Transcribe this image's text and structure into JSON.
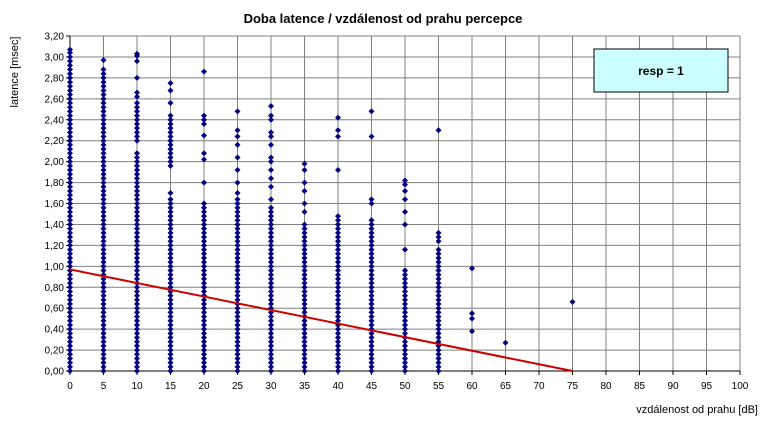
{
  "chart_data": {
    "type": "scatter",
    "title": "Doba latence / vzdálenost od prahu percepce",
    "xlabel": "vzdálenost od prahu [dB]",
    "ylabel": "latence [msec]",
    "xlim": [
      0,
      100
    ],
    "ylim": [
      0,
      3.2
    ],
    "x_ticks": [
      "0",
      "5",
      "10",
      "15",
      "20",
      "25",
      "30",
      "35",
      "40",
      "45",
      "50",
      "55",
      "60",
      "65",
      "70",
      "75",
      "80",
      "85",
      "90",
      "95",
      "100"
    ],
    "y_ticks": [
      "0,00",
      "0,20",
      "0,40",
      "0,60",
      "0,80",
      "1,00",
      "1,20",
      "1,40",
      "1,60",
      "1,80",
      "2,00",
      "2,20",
      "2,40",
      "2,60",
      "2,80",
      "3,00",
      "3,20"
    ],
    "grid": true,
    "legend": {
      "text": "resp = 1",
      "placement": "top-right"
    },
    "colors": {
      "points": "#000080",
      "trendline": "#cc0000",
      "legend_fill": "#ccffff",
      "grid": "#808080"
    },
    "series": [
      {
        "kind": "points",
        "points": [
          {
            "x": 0,
            "y": [
              0.0,
              0.04,
              0.08,
              0.12,
              0.16,
              0.2,
              0.24,
              0.28,
              0.32,
              0.36,
              0.4,
              0.44,
              0.48,
              0.52,
              0.56,
              0.6,
              0.64,
              0.68,
              0.72,
              0.76,
              0.8,
              0.84,
              0.88,
              0.92,
              0.96,
              1.0,
              1.04,
              1.08,
              1.12,
              1.16,
              1.2,
              1.24,
              1.28,
              1.32,
              1.36,
              1.4,
              1.44,
              1.48,
              1.52,
              1.56,
              1.6,
              1.64,
              1.68,
              1.72,
              1.76,
              1.8,
              1.84,
              1.88,
              1.92,
              1.96,
              2.0,
              2.04,
              2.08,
              2.12,
              2.16,
              2.2,
              2.24,
              2.28,
              2.32,
              2.36,
              2.4,
              2.44,
              2.48,
              2.52,
              2.56,
              2.6,
              2.64,
              2.68,
              2.72,
              2.76,
              2.8,
              2.84,
              2.88,
              2.92,
              2.96,
              3.0,
              3.04,
              3.07
            ]
          },
          {
            "x": 5,
            "y": [
              0.0,
              0.04,
              0.08,
              0.12,
              0.16,
              0.2,
              0.24,
              0.28,
              0.32,
              0.36,
              0.4,
              0.44,
              0.48,
              0.52,
              0.56,
              0.6,
              0.64,
              0.68,
              0.72,
              0.76,
              0.8,
              0.84,
              0.88,
              0.92,
              0.96,
              1.0,
              1.04,
              1.08,
              1.12,
              1.16,
              1.2,
              1.24,
              1.28,
              1.32,
              1.36,
              1.4,
              1.44,
              1.48,
              1.52,
              1.56,
              1.6,
              1.64,
              1.68,
              1.72,
              1.76,
              1.8,
              1.84,
              1.88,
              1.92,
              1.96,
              2.0,
              2.04,
              2.08,
              2.12,
              2.16,
              2.2,
              2.24,
              2.28,
              2.32,
              2.36,
              2.4,
              2.44,
              2.48,
              2.52,
              2.56,
              2.6,
              2.64,
              2.68,
              2.72,
              2.76,
              2.8,
              2.84,
              2.88,
              2.97
            ]
          },
          {
            "x": 10,
            "y": [
              0.0,
              0.04,
              0.08,
              0.12,
              0.16,
              0.2,
              0.24,
              0.28,
              0.32,
              0.36,
              0.4,
              0.44,
              0.48,
              0.52,
              0.56,
              0.6,
              0.64,
              0.68,
              0.72,
              0.76,
              0.8,
              0.84,
              0.88,
              0.92,
              0.96,
              1.0,
              1.04,
              1.08,
              1.12,
              1.16,
              1.2,
              1.24,
              1.28,
              1.32,
              1.36,
              1.4,
              1.44,
              1.48,
              1.52,
              1.56,
              1.6,
              1.64,
              1.68,
              1.72,
              1.76,
              1.8,
              1.84,
              1.88,
              1.92,
              1.96,
              2.0,
              2.04,
              2.08,
              2.2,
              2.24,
              2.28,
              2.32,
              2.36,
              2.4,
              2.44,
              2.48,
              2.52,
              2.56,
              2.62,
              2.66,
              2.8,
              2.96,
              3.01,
              3.03
            ]
          },
          {
            "x": 15,
            "y": [
              0.0,
              0.04,
              0.08,
              0.12,
              0.16,
              0.2,
              0.24,
              0.28,
              0.32,
              0.36,
              0.4,
              0.44,
              0.48,
              0.52,
              0.56,
              0.6,
              0.64,
              0.68,
              0.72,
              0.76,
              0.8,
              0.84,
              0.88,
              0.92,
              0.96,
              1.0,
              1.04,
              1.08,
              1.12,
              1.16,
              1.2,
              1.24,
              1.28,
              1.32,
              1.36,
              1.4,
              1.44,
              1.48,
              1.52,
              1.56,
              1.6,
              1.64,
              1.7,
              1.96,
              2.0,
              2.04,
              2.08,
              2.12,
              2.16,
              2.2,
              2.24,
              2.28,
              2.32,
              2.36,
              2.4,
              2.44,
              2.56,
              2.68,
              2.75
            ]
          },
          {
            "x": 20,
            "y": [
              0.0,
              0.04,
              0.08,
              0.12,
              0.16,
              0.2,
              0.24,
              0.28,
              0.32,
              0.36,
              0.4,
              0.44,
              0.48,
              0.52,
              0.56,
              0.6,
              0.64,
              0.68,
              0.72,
              0.76,
              0.8,
              0.84,
              0.88,
              0.92,
              0.96,
              1.0,
              1.04,
              1.08,
              1.12,
              1.16,
              1.2,
              1.24,
              1.28,
              1.32,
              1.36,
              1.4,
              1.44,
              1.48,
              1.52,
              1.56,
              1.6,
              1.8,
              2.02,
              2.08,
              2.25,
              2.36,
              2.4,
              2.44,
              2.86
            ]
          },
          {
            "x": 25,
            "y": [
              0.0,
              0.04,
              0.08,
              0.12,
              0.16,
              0.2,
              0.24,
              0.28,
              0.32,
              0.36,
              0.4,
              0.44,
              0.48,
              0.52,
              0.56,
              0.6,
              0.64,
              0.68,
              0.72,
              0.76,
              0.8,
              0.84,
              0.88,
              0.92,
              0.96,
              1.0,
              1.04,
              1.08,
              1.12,
              1.16,
              1.2,
              1.24,
              1.28,
              1.32,
              1.36,
              1.4,
              1.44,
              1.48,
              1.52,
              1.56,
              1.6,
              1.64,
              1.7,
              1.8,
              1.92,
              2.04,
              2.16,
              2.24,
              2.3,
              2.48
            ]
          },
          {
            "x": 30,
            "y": [
              0.0,
              0.04,
              0.08,
              0.12,
              0.16,
              0.2,
              0.24,
              0.28,
              0.32,
              0.36,
              0.4,
              0.44,
              0.48,
              0.52,
              0.56,
              0.6,
              0.64,
              0.68,
              0.72,
              0.76,
              0.8,
              0.84,
              0.88,
              0.92,
              0.96,
              1.0,
              1.04,
              1.08,
              1.12,
              1.16,
              1.2,
              1.24,
              1.28,
              1.32,
              1.36,
              1.4,
              1.44,
              1.48,
              1.52,
              1.56,
              1.64,
              1.76,
              1.84,
              1.92,
              2.0,
              2.04,
              2.16,
              2.24,
              2.28,
              2.4,
              2.44,
              2.53
            ]
          },
          {
            "x": 35,
            "y": [
              0.0,
              0.04,
              0.08,
              0.12,
              0.16,
              0.2,
              0.24,
              0.28,
              0.32,
              0.36,
              0.4,
              0.44,
              0.48,
              0.52,
              0.56,
              0.6,
              0.64,
              0.68,
              0.72,
              0.76,
              0.8,
              0.84,
              0.88,
              0.92,
              0.96,
              1.0,
              1.04,
              1.08,
              1.12,
              1.16,
              1.2,
              1.24,
              1.28,
              1.32,
              1.36,
              1.4,
              1.52,
              1.6,
              1.72,
              1.8,
              1.92,
              1.98
            ]
          },
          {
            "x": 40,
            "y": [
              0.0,
              0.04,
              0.08,
              0.12,
              0.16,
              0.2,
              0.24,
              0.28,
              0.32,
              0.36,
              0.4,
              0.44,
              0.48,
              0.52,
              0.56,
              0.6,
              0.64,
              0.68,
              0.72,
              0.76,
              0.8,
              0.84,
              0.88,
              0.92,
              0.96,
              1.0,
              1.04,
              1.08,
              1.12,
              1.16,
              1.2,
              1.24,
              1.28,
              1.32,
              1.36,
              1.4,
              1.44,
              1.48,
              1.92,
              2.24,
              2.3,
              2.42
            ]
          },
          {
            "x": 45,
            "y": [
              0.0,
              0.04,
              0.08,
              0.12,
              0.16,
              0.2,
              0.24,
              0.28,
              0.32,
              0.36,
              0.4,
              0.44,
              0.48,
              0.52,
              0.56,
              0.6,
              0.64,
              0.68,
              0.72,
              0.76,
              0.8,
              0.84,
              0.88,
              0.92,
              0.96,
              1.0,
              1.04,
              1.08,
              1.12,
              1.16,
              1.2,
              1.24,
              1.28,
              1.32,
              1.36,
              1.4,
              1.44,
              1.6,
              1.64,
              2.24,
              2.48
            ]
          },
          {
            "x": 50,
            "y": [
              0.0,
              0.04,
              0.08,
              0.12,
              0.16,
              0.2,
              0.24,
              0.28,
              0.32,
              0.36,
              0.4,
              0.44,
              0.48,
              0.52,
              0.56,
              0.6,
              0.64,
              0.68,
              0.72,
              0.76,
              0.8,
              0.84,
              0.88,
              0.92,
              0.96,
              1.16,
              1.4,
              1.52,
              1.64,
              1.72,
              1.78,
              1.82
            ]
          },
          {
            "x": 55,
            "y": [
              0.0,
              0.04,
              0.08,
              0.12,
              0.16,
              0.2,
              0.24,
              0.28,
              0.32,
              0.36,
              0.4,
              0.44,
              0.48,
              0.52,
              0.56,
              0.6,
              0.64,
              0.68,
              0.72,
              0.76,
              0.8,
              0.84,
              0.88,
              0.92,
              0.96,
              1.0,
              1.04,
              1.08,
              1.12,
              1.16,
              1.24,
              1.28,
              1.32,
              2.3
            ]
          },
          {
            "x": 60,
            "y": [
              0.38,
              0.5,
              0.55,
              0.98
            ]
          },
          {
            "x": 65,
            "y": [
              0.27
            ]
          },
          {
            "x": 75,
            "y": [
              0.66
            ]
          }
        ]
      },
      {
        "kind": "trendline",
        "x": [
          0,
          75
        ],
        "y": [
          0.97,
          0.0
        ]
      }
    ]
  }
}
